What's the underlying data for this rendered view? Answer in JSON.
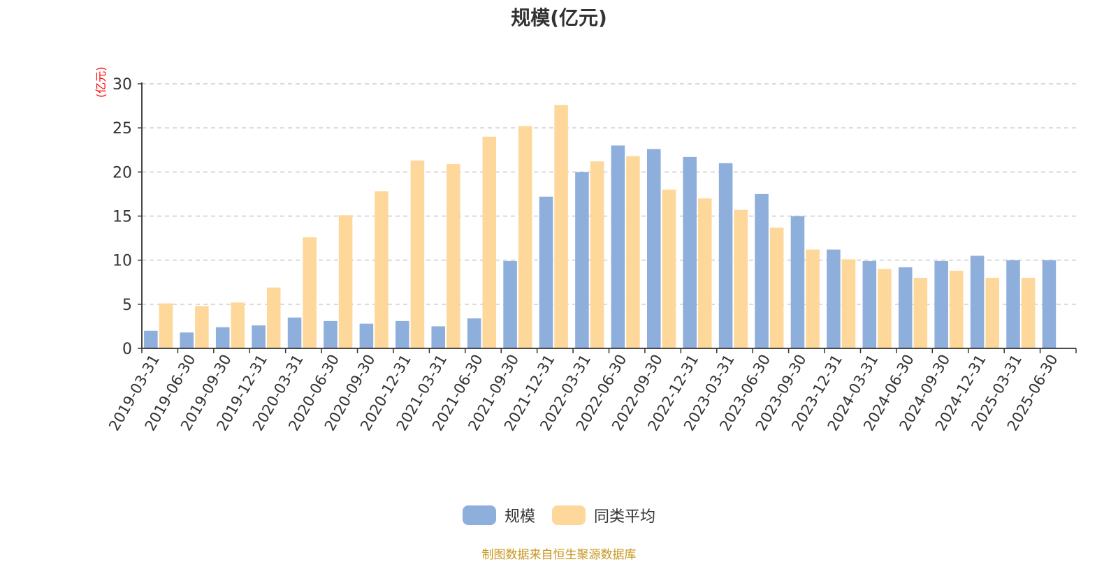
{
  "chart_data": {
    "type": "bar",
    "title": "规模(亿元)",
    "unit_label": "(亿元)",
    "categories": [
      "2019-03-31",
      "2019-06-30",
      "2019-09-30",
      "2019-12-31",
      "2020-03-31",
      "2020-06-30",
      "2020-09-30",
      "2020-12-31",
      "2021-03-31",
      "2021-06-30",
      "2021-09-30",
      "2021-12-31",
      "2022-03-31",
      "2022-06-30",
      "2022-09-30",
      "2022-12-31",
      "2023-03-31",
      "2023-06-30",
      "2023-09-30",
      "2023-12-31",
      "2024-03-31",
      "2024-06-30",
      "2024-09-30",
      "2024-12-31",
      "2025-03-31",
      "2025-06-30"
    ],
    "series": [
      {
        "name": "规模",
        "color": "#8eaedb",
        "values": [
          2.0,
          1.8,
          2.4,
          2.6,
          3.5,
          3.1,
          2.8,
          3.1,
          2.5,
          3.4,
          9.9,
          17.2,
          20.0,
          23.0,
          22.6,
          21.7,
          21.0,
          17.5,
          15.0,
          11.2,
          9.9,
          9.2,
          9.9,
          10.5,
          10.0,
          10.0
        ]
      },
      {
        "name": "同类平均",
        "color": "#fdd89a",
        "values": [
          5.1,
          4.8,
          5.2,
          6.9,
          12.6,
          15.1,
          17.8,
          21.3,
          20.9,
          24.0,
          25.2,
          27.6,
          21.2,
          21.8,
          18.0,
          17.0,
          15.7,
          13.7,
          11.2,
          10.1,
          9.0,
          8.0,
          8.8,
          8.0,
          8.0,
          null
        ]
      }
    ],
    "ylim": [
      0,
      30
    ],
    "yticks": [
      0,
      5,
      10,
      15,
      20,
      25,
      30
    ],
    "grid": true,
    "legend_position": "bottom"
  },
  "legend": {
    "items": [
      {
        "label": "规模",
        "color": "#8eaedb"
      },
      {
        "label": "同类平均",
        "color": "#fdd89a"
      }
    ]
  },
  "source_note": "制图数据来自恒生聚源数据库"
}
